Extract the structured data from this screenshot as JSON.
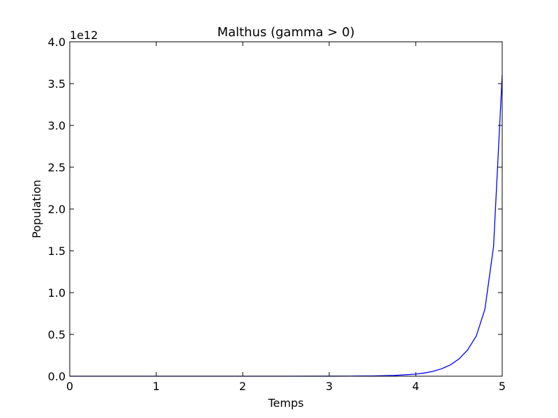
{
  "chart_data": {
    "type": "line",
    "title": "Malthus (gamma > 0)",
    "xlabel": "Temps",
    "ylabel": "Population",
    "y_offset_label": "1e12",
    "xlim": [
      0,
      5
    ],
    "ylim": [
      0,
      4.0
    ],
    "y_unit_multiplier": 1000000000000.0,
    "x_ticks": [
      0,
      1,
      2,
      3,
      4,
      5
    ],
    "x_tick_labels": [
      "0",
      "1",
      "2",
      "3",
      "4",
      "5"
    ],
    "y_ticks": [
      0,
      0.5,
      1.0,
      1.5,
      2.0,
      2.5,
      3.0,
      3.5,
      4.0
    ],
    "y_tick_labels": [
      "0.0",
      "0.5",
      "1.0",
      "1.5",
      "2.0",
      "2.5",
      "3.0",
      "3.5",
      "4.0"
    ],
    "grid": false,
    "legend": "none",
    "series": [
      {
        "color": "#0000ff",
        "x": [
          0,
          0.5,
          1,
          1.5,
          2,
          2.5,
          3,
          3.25,
          3.5,
          3.75,
          4,
          4.1,
          4.2,
          4.3,
          4.4,
          4.5,
          4.6,
          4.7,
          4.8,
          4.9,
          5
        ],
        "y": [
          0,
          0,
          0,
          0,
          0,
          0.0001,
          0.0004,
          0.0012,
          0.0033,
          0.009,
          0.025,
          0.038,
          0.058,
          0.089,
          0.135,
          0.206,
          0.314,
          0.48,
          0.8,
          1.55,
          3.6
        ]
      }
    ]
  }
}
